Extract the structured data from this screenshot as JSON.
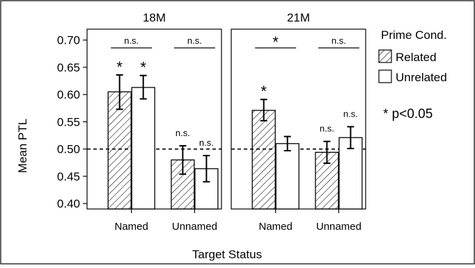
{
  "chart_data": {
    "type": "bar",
    "xlabel": "Target Status",
    "ylabel": "Mean PTL",
    "ylim": [
      0.39,
      0.72
    ],
    "yticks": [
      "0.40",
      "0.45",
      "0.50",
      "0.55",
      "0.60",
      "0.65",
      "0.70"
    ],
    "reference_line": 0.5,
    "legend": {
      "title": "Prime Cond.",
      "entries": [
        "Related",
        "Unrelated"
      ],
      "placement": "right"
    },
    "note": "* p<0.05",
    "panels": [
      {
        "title": "18M",
        "categories": [
          "Named",
          "Unnamed"
        ],
        "series": [
          {
            "name": "Related",
            "values": [
              0.605,
              0.48
            ],
            "err_low": [
              0.573,
              0.454
            ],
            "err_high": [
              0.636,
              0.506
            ],
            "marks": [
              "*",
              "n.s."
            ]
          },
          {
            "name": "Unrelated",
            "values": [
              0.613,
              0.464
            ],
            "err_low": [
              0.592,
              0.44
            ],
            "err_high": [
              0.635,
              0.488
            ],
            "marks": [
              "*",
              "n.s."
            ]
          }
        ],
        "comparisons": [
          "n.s.",
          "n.s."
        ]
      },
      {
        "title": "21M",
        "categories": [
          "Named",
          "Unnamed"
        ],
        "series": [
          {
            "name": "Related",
            "values": [
              0.571,
              0.494
            ],
            "err_low": [
              0.552,
              0.474
            ],
            "err_high": [
              0.591,
              0.514
            ],
            "marks": [
              "*",
              "n.s."
            ]
          },
          {
            "name": "Unrelated",
            "values": [
              0.51,
              0.521
            ],
            "err_low": [
              0.497,
              0.501
            ],
            "err_high": [
              0.523,
              0.541
            ],
            "marks": [
              "",
              "n.s."
            ]
          }
        ],
        "comparisons": [
          "*",
          "n.s."
        ]
      }
    ]
  }
}
